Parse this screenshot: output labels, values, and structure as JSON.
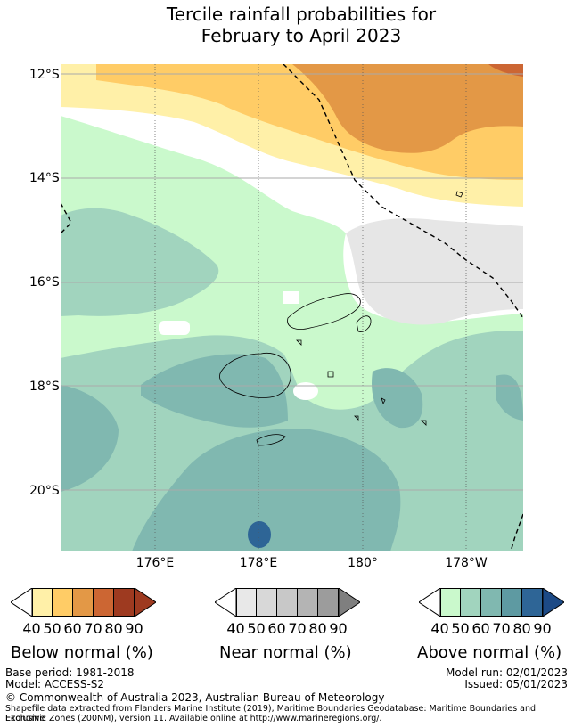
{
  "title": {
    "line1": "Tercile rainfall probabilities for",
    "line2": "February to April 2023"
  },
  "axes": {
    "latitudes": [
      "12°S",
      "14°S",
      "16°S",
      "18°S",
      "20°S"
    ],
    "longitudes": [
      "176°E",
      "178°E",
      "180°",
      "178°W"
    ]
  },
  "colors": {
    "below": [
      "#fff0a8",
      "#ffcc66",
      "#e39846",
      "#cc6633",
      "#9e3a20"
    ],
    "near": [
      "#e8e8e8",
      "#d8d8d8",
      "#c8c8c8",
      "#b4b4b4",
      "#9c9c9c"
    ],
    "above": [
      "#caf9cc",
      "#a1d4be",
      "#80b8b0",
      "#5e9aa2",
      "#2e6596",
      "#1c4a86"
    ]
  },
  "legend": {
    "below": {
      "label": "Below normal (%)",
      "ticks": [
        "40",
        "50",
        "60",
        "70",
        "80",
        "90"
      ]
    },
    "near": {
      "label": "Near normal (%)",
      "ticks": [
        "40",
        "50",
        "60",
        "70",
        "80",
        "90"
      ]
    },
    "above": {
      "label": "Above normal (%)",
      "ticks": [
        "40",
        "50",
        "60",
        "70",
        "80",
        "90"
      ]
    }
  },
  "footer": {
    "base_period": "Base period: 1981-2018",
    "model": "Model: ACCESS-S2",
    "model_run": "Model run: 02/01/2023",
    "issued": "Issued: 05/01/2023",
    "copyright": "© Commonwealth of Australia 2023, Australian Bureau of Meteorology",
    "source_line1": "Shapefile data extracted from Flanders Marine Institute (2019), Maritime Boundaries Geodatabase: Maritime Boundaries and Exclusive",
    "source_line2": "Economic Zones (200NM), version 11. Available online at http://www.marineregions.org/."
  }
}
